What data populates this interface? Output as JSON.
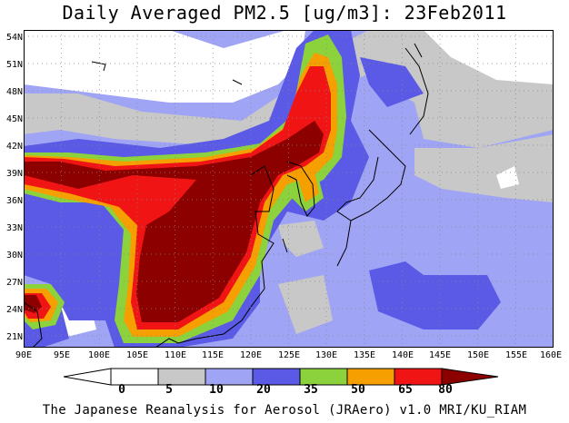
{
  "title": "Daily Averaged PM2.5 [ug/m3]: 23Feb2011",
  "credit": "The Japanese Reanalysis for Aerosol (JRAero) v1.0 MRI/KU_RIAM",
  "map": {
    "lon_range": [
      90,
      160
    ],
    "lat_range": [
      20,
      55
    ],
    "y_ticks": [
      "54N",
      "51N",
      "48N",
      "45N",
      "42N",
      "39N",
      "36N",
      "33N",
      "30N",
      "27N",
      "24N",
      "21N"
    ],
    "x_ticks": [
      "90E",
      "95E",
      "100E",
      "105E",
      "110E",
      "115E",
      "120E",
      "125E",
      "130E",
      "135E",
      "140E",
      "145E",
      "150E",
      "155E",
      "160E"
    ]
  },
  "colorbar": {
    "labels": [
      "0",
      "5",
      "10",
      "20",
      "35",
      "50",
      "65",
      "80"
    ],
    "colors": [
      "#ffffff",
      "#c8c8c8",
      "#a0a4f4",
      "#5a5ae6",
      "#8cd23c",
      "#f5a000",
      "#f01414",
      "#8c0000"
    ]
  }
}
